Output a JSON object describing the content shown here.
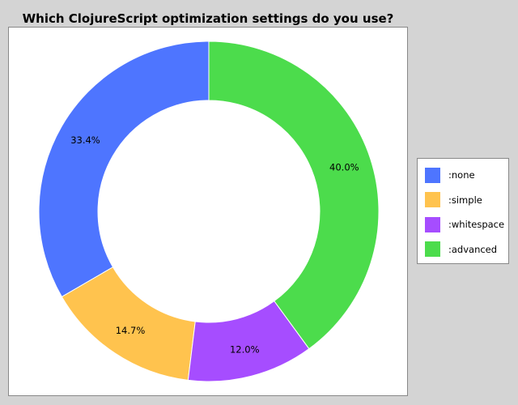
{
  "chart_data": {
    "type": "pie",
    "title": "Which ClojureScript optimization settings do you use?",
    "categories": [
      ":none",
      ":simple",
      ":whitespace",
      ":advanced"
    ],
    "values": [
      33.4,
      14.7,
      12.0,
      40.0
    ],
    "labels": [
      "33.4%",
      "14.7%",
      "12.0%",
      "40.0%"
    ],
    "colors": [
      "#4e75ff",
      "#ffc34e",
      "#a64dff",
      "#4cdc4c"
    ],
    "donut": true,
    "legend_position": "right"
  }
}
